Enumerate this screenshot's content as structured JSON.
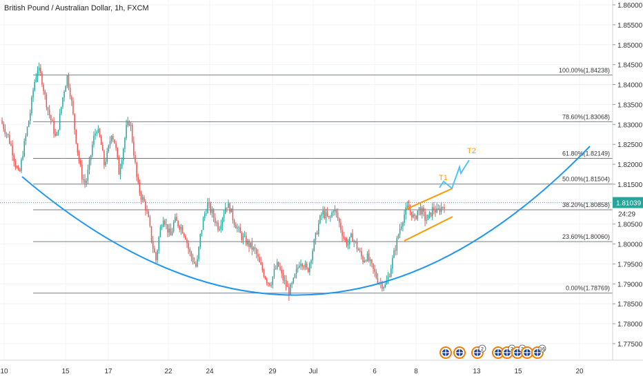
{
  "header": {
    "title": "British Pound / Australian Dollar, 1h, FXCM"
  },
  "chart_data": {
    "type": "candlestick",
    "symbol": "GBPAUD",
    "timeframe": "1h",
    "ylim": [
      1.77,
      1.86
    ],
    "y_ticks": [
      "1.86000",
      "1.85500",
      "1.85000",
      "1.84500",
      "1.84000",
      "1.83500",
      "1.83000",
      "1.82500",
      "1.82000",
      "1.81500",
      "1.81000",
      "1.80500",
      "1.80000",
      "1.79500",
      "1.79000",
      "1.78500",
      "1.78000",
      "1.77500"
    ],
    "x_ticks": [
      "10",
      "15",
      "17",
      "22",
      "24",
      "29",
      "Jul",
      "6",
      "8",
      "13",
      "15",
      "20"
    ],
    "current_price": {
      "label": "1.81039",
      "value": 1.81039,
      "countdown": "24:29"
    },
    "fib_levels": [
      {
        "label": "100.00%(1.84238)",
        "value": 1.84238
      },
      {
        "label": "78.60%(1.83068)",
        "value": 1.83068
      },
      {
        "label": "61.80%(1.82149)",
        "value": 1.82149
      },
      {
        "label": "50.00%(1.81504)",
        "value": 1.81504
      },
      {
        "label": "38.20%(1.80858)",
        "value": 1.80858
      },
      {
        "label": "23.60%(1.80060)",
        "value": 1.8006
      },
      {
        "label": "0.00%(1.78769)",
        "value": 1.78769
      }
    ],
    "targets": [
      {
        "label": "T1",
        "value": 1.816
      },
      {
        "label": "T2",
        "value": 1.8238
      }
    ],
    "price_path": [
      1.831,
      1.829,
      1.827,
      1.824,
      1.82,
      1.817,
      1.823,
      1.828,
      1.833,
      1.84,
      1.844,
      1.842,
      1.837,
      1.833,
      1.83,
      1.826,
      1.832,
      1.838,
      1.842,
      1.837,
      1.829,
      1.822,
      1.817,
      1.815,
      1.82,
      1.826,
      1.829,
      1.826,
      1.82,
      1.823,
      1.828,
      1.825,
      1.818,
      1.823,
      1.829,
      1.831,
      1.823,
      1.815,
      1.812,
      1.81,
      1.806,
      1.8,
      1.796,
      1.803,
      1.807,
      1.804,
      1.802,
      1.806,
      1.805,
      1.804,
      1.802,
      1.798,
      1.796,
      1.794,
      1.802,
      1.807,
      1.81,
      1.808,
      1.806,
      1.804,
      1.807,
      1.81,
      1.809,
      1.806,
      1.804,
      1.802,
      1.801,
      1.8,
      1.799,
      1.798,
      1.795,
      1.793,
      1.791,
      1.79,
      1.793,
      1.795,
      1.792,
      1.79,
      1.788,
      1.79,
      1.793,
      1.796,
      1.795,
      1.793,
      1.797,
      1.801,
      1.805,
      1.808,
      1.807,
      1.806,
      1.809,
      1.807,
      1.804,
      1.801,
      1.8,
      1.802,
      1.8,
      1.798,
      1.796,
      1.797,
      1.795,
      1.793,
      1.791,
      1.79,
      1.7895,
      1.792,
      1.796,
      1.8,
      1.804,
      1.807,
      1.809,
      1.808,
      1.806,
      1.809,
      1.808,
      1.806,
      1.807,
      1.809,
      1.808,
      1.809,
      1.81
    ]
  },
  "events": [
    {
      "name": "flag-event-gb",
      "badge": ""
    },
    {
      "name": "flag-event-au",
      "badge": ""
    },
    {
      "name": "flag-event-gb-2",
      "badge": "2"
    },
    {
      "name": "flag-event-au-2",
      "badge": ""
    },
    {
      "name": "flag-event-gb-3",
      "badge": "2"
    },
    {
      "name": "flag-event-au-3",
      "badge": "3"
    },
    {
      "name": "flag-event-au-4",
      "badge": ""
    },
    {
      "name": "flag-event-gb-4",
      "badge": "16"
    }
  ],
  "colors": {
    "up": "#26a69a",
    "down": "#ef5350",
    "fib": "#787b86",
    "arc": "#2196f3",
    "channel": "#ff9800",
    "projection": "#4fc3f7",
    "price_label": "#26a69a",
    "grid": "#f0f3fa"
  }
}
